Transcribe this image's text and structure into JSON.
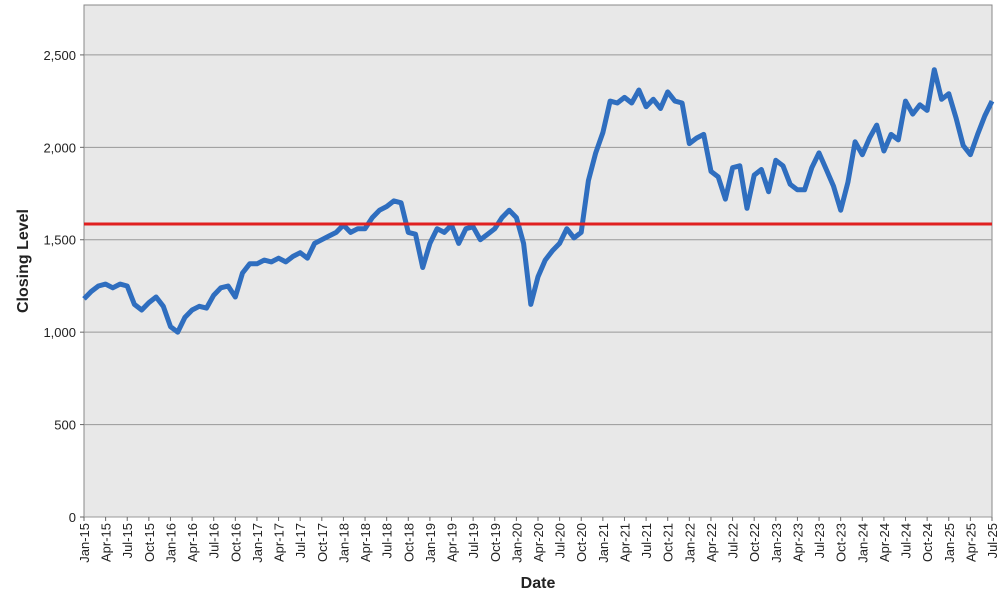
{
  "chart_data": {
    "type": "line",
    "x_label": "Date",
    "y_label": "Closing Level",
    "x": [
      "2015-01",
      "2015-02",
      "2015-03",
      "2015-04",
      "2015-05",
      "2015-06",
      "2015-07",
      "2015-08",
      "2015-09",
      "2015-10",
      "2015-11",
      "2015-12",
      "2016-01",
      "2016-02",
      "2016-03",
      "2016-04",
      "2016-05",
      "2016-06",
      "2016-07",
      "2016-08",
      "2016-09",
      "2016-10",
      "2016-11",
      "2016-12",
      "2017-01",
      "2017-02",
      "2017-03",
      "2017-04",
      "2017-05",
      "2017-06",
      "2017-07",
      "2017-08",
      "2017-09",
      "2017-10",
      "2017-11",
      "2017-12",
      "2018-01",
      "2018-02",
      "2018-03",
      "2018-04",
      "2018-05",
      "2018-06",
      "2018-07",
      "2018-08",
      "2018-09",
      "2018-10",
      "2018-11",
      "2018-12",
      "2019-01",
      "2019-02",
      "2019-03",
      "2019-04",
      "2019-05",
      "2019-06",
      "2019-07",
      "2019-08",
      "2019-09",
      "2019-10",
      "2019-11",
      "2019-12",
      "2020-01",
      "2020-02",
      "2020-03",
      "2020-04",
      "2020-05",
      "2020-06",
      "2020-07",
      "2020-08",
      "2020-09",
      "2020-10",
      "2020-11",
      "2020-12",
      "2021-01",
      "2021-02",
      "2021-03",
      "2021-04",
      "2021-05",
      "2021-06",
      "2021-07",
      "2021-08",
      "2021-09",
      "2021-10",
      "2021-11",
      "2021-12",
      "2022-01",
      "2022-02",
      "2022-03",
      "2022-04",
      "2022-05",
      "2022-06",
      "2022-07",
      "2022-08",
      "2022-09",
      "2022-10",
      "2022-11",
      "2022-12",
      "2023-01",
      "2023-02",
      "2023-03",
      "2023-04",
      "2023-05",
      "2023-06",
      "2023-07",
      "2023-08",
      "2023-09",
      "2023-10",
      "2023-11",
      "2023-12",
      "2024-01",
      "2024-02",
      "2024-03",
      "2024-04",
      "2024-05",
      "2024-06",
      "2024-07",
      "2024-08",
      "2024-09",
      "2024-10",
      "2024-11",
      "2024-12",
      "2025-01",
      "2025-02",
      "2025-03",
      "2025-04",
      "2025-05",
      "2025-06",
      "2025-07"
    ],
    "series": [
      {
        "color": "#2f6ebf",
        "values": [
          1180,
          1220,
          1250,
          1260,
          1240,
          1260,
          1250,
          1150,
          1120,
          1160,
          1190,
          1140,
          1030,
          1000,
          1080,
          1120,
          1140,
          1130,
          1200,
          1240,
          1250,
          1190,
          1320,
          1370,
          1370,
          1390,
          1380,
          1400,
          1380,
          1410,
          1430,
          1400,
          1480,
          1500,
          1520,
          1540,
          1580,
          1540,
          1560,
          1560,
          1620,
          1660,
          1680,
          1710,
          1700,
          1540,
          1530,
          1350,
          1480,
          1560,
          1540,
          1580,
          1480,
          1560,
          1570,
          1500,
          1530,
          1560,
          1620,
          1660,
          1620,
          1480,
          1150,
          1300,
          1390,
          1440,
          1480,
          1560,
          1510,
          1540,
          1820,
          1970,
          2080,
          2250,
          2240,
          2270,
          2240,
          2310,
          2220,
          2260,
          2210,
          2300,
          2250,
          2240,
          2020,
          2050,
          2070,
          1870,
          1840,
          1720,
          1890,
          1900,
          1670,
          1850,
          1880,
          1760,
          1930,
          1900,
          1800,
          1770,
          1770,
          1890,
          1970,
          1880,
          1790,
          1660,
          1810,
          2030,
          1960,
          2050,
          2120,
          1980,
          2070,
          2040,
          2250,
          2180,
          2230,
          2200,
          2420,
          2260,
          2290,
          2160,
          2010,
          1960,
          2070,
          2170,
          2250
        ]
      }
    ],
    "hline": {
      "value": 1585,
      "color": "#e02020"
    },
    "ylim": [
      0,
      2770
    ],
    "yticks": [
      0,
      500,
      {
        "value": 1000,
        "label": "1,000"
      },
      {
        "value": 1500,
        "label": "1,500"
      },
      {
        "value": 2000,
        "label": "2,000"
      },
      {
        "value": 2500,
        "label": "2,500"
      }
    ],
    "xlim": [
      "2015-01",
      "2025-07"
    ],
    "xticks": [
      {
        "value": "2015-01",
        "label": "Jan-15"
      },
      {
        "value": "2015-04",
        "label": "Apr-15"
      },
      {
        "value": "2015-07",
        "label": "Jul-15"
      },
      {
        "value": "2015-10",
        "label": "Oct-15"
      },
      {
        "value": "2016-01",
        "label": "Jan-16"
      },
      {
        "value": "2016-04",
        "label": "Apr-16"
      },
      {
        "value": "2016-07",
        "label": "Jul-16"
      },
      {
        "value": "2016-10",
        "label": "Oct-16"
      },
      {
        "value": "2017-01",
        "label": "Jan-17"
      },
      {
        "value": "2017-04",
        "label": "Apr-17"
      },
      {
        "value": "2017-07",
        "label": "Jul-17"
      },
      {
        "value": "2017-10",
        "label": "Oct-17"
      },
      {
        "value": "2018-01",
        "label": "Jan-18"
      },
      {
        "value": "2018-04",
        "label": "Apr-18"
      },
      {
        "value": "2018-07",
        "label": "Jul-18"
      },
      {
        "value": "2018-10",
        "label": "Oct-18"
      },
      {
        "value": "2019-01",
        "label": "Jan-19"
      },
      {
        "value": "2019-04",
        "label": "Apr-19"
      },
      {
        "value": "2019-07",
        "label": "Jul-19"
      },
      {
        "value": "2019-10",
        "label": "Oct-19"
      },
      {
        "value": "2020-01",
        "label": "Jan-20"
      },
      {
        "value": "2020-04",
        "label": "Apr-20"
      },
      {
        "value": "2020-07",
        "label": "Jul-20"
      },
      {
        "value": "2020-10",
        "label": "Oct-20"
      },
      {
        "value": "2021-01",
        "label": "Jan-21"
      },
      {
        "value": "2021-04",
        "label": "Apr-21"
      },
      {
        "value": "2021-07",
        "label": "Jul-21"
      },
      {
        "value": "2021-10",
        "label": "Oct-21"
      },
      {
        "value": "2022-01",
        "label": "Jan-22"
      },
      {
        "value": "2022-04",
        "label": "Apr-22"
      },
      {
        "value": "2022-07",
        "label": "Jul-22"
      },
      {
        "value": "2022-10",
        "label": "Oct-22"
      },
      {
        "value": "2023-01",
        "label": "Jan-23"
      },
      {
        "value": "2023-04",
        "label": "Apr-23"
      },
      {
        "value": "2023-07",
        "label": "Jul-23"
      },
      {
        "value": "2023-10",
        "label": "Oct-23"
      },
      {
        "value": "2024-01",
        "label": "Jan-24"
      },
      {
        "value": "2024-04",
        "label": "Apr-24"
      },
      {
        "value": "2024-07",
        "label": "Jul-24"
      },
      {
        "value": "2024-10",
        "label": "Oct-24"
      },
      {
        "value": "2025-01",
        "label": "Jan-25"
      },
      {
        "value": "2025-04",
        "label": "Apr-25"
      },
      {
        "value": "2025-07",
        "label": "Jul-25"
      }
    ],
    "grid": true
  }
}
